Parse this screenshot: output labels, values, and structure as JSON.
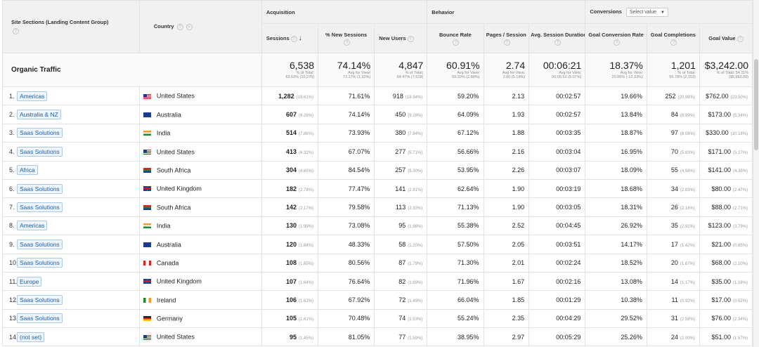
{
  "headers": {
    "dimension1": "Site Sections (Landing Content Group)",
    "dimension2": "Country",
    "groups": {
      "acquisition": "Acquisition",
      "behavior": "Behavior",
      "conversions": "Conversions"
    },
    "conversions_select": "Select value",
    "metrics": [
      "Sessions",
      "% New Sessions",
      "New Users",
      "Bounce Rate",
      "Pages / Session",
      "Avg. Session Duration",
      "Goal Conversion Rate",
      "Goal Completions",
      "Goal Value"
    ]
  },
  "total": {
    "label": "Organic Traffic",
    "cells": [
      {
        "value": "6,538",
        "sub1": "% of Total:",
        "sub2": "63.63% (10,275)"
      },
      {
        "value": "74.14%",
        "sub1": "Avg for View:",
        "sub2": "73.17% (1.32%)"
      },
      {
        "value": "4,847",
        "sub1": "% of Total:",
        "sub2": "64.47% (7,518)"
      },
      {
        "value": "60.91%",
        "sub1": "Avg for View:",
        "sub2": "59.20% (2.88%)"
      },
      {
        "value": "2.74",
        "sub1": "Avg for View:",
        "sub2": "2.60 (5.19%)"
      },
      {
        "value": "00:06:21",
        "sub1": "Avg for View:",
        "sub2": "00:05:52 (8.07%)"
      },
      {
        "value": "18.37%",
        "sub1": "Avg for View:",
        "sub2": "20.95% (-12.33%)"
      },
      {
        "value": "1,201",
        "sub1": "% of Total:",
        "sub2": "55.78% (2,153)"
      },
      {
        "value": "$3,242.00",
        "sub1": "% of Total: 54.11%",
        "sub2": "($5,992.00)"
      }
    ]
  },
  "rows": [
    {
      "idx": "1.",
      "section": "Americas",
      "country": "United States",
      "flag": "us",
      "sessions": "1,282",
      "sessions_pct": "(19.61%)",
      "new_sessions": "71.61%",
      "new_users": "918",
      "new_users_pct": "(18.94%)",
      "bounce": "59.20%",
      "pages": "2.13",
      "duration": "00:02:57",
      "conv_rate": "19.66%",
      "completions": "252",
      "completions_pct": "(20.98%)",
      "value": "$762.00",
      "value_pct": "(23.50%)"
    },
    {
      "idx": "2.",
      "section": "Australia & NZ",
      "country": "Australia",
      "flag": "au",
      "sessions": "607",
      "sessions_pct": "(9.28%)",
      "new_sessions": "74.14%",
      "new_users": "450",
      "new_users_pct": "(9.28%)",
      "bounce": "64.09%",
      "pages": "1.93",
      "duration": "00:02:57",
      "conv_rate": "13.84%",
      "completions": "84",
      "completions_pct": "(6.99%)",
      "value": "$173.00",
      "value_pct": "(5.34%)"
    },
    {
      "idx": "3.",
      "section": "Saas Solutions",
      "country": "India",
      "flag": "in",
      "sessions": "514",
      "sessions_pct": "(7.86%)",
      "new_sessions": "73.93%",
      "new_users": "380",
      "new_users_pct": "(7.84%)",
      "bounce": "67.12%",
      "pages": "1.88",
      "duration": "00:03:35",
      "conv_rate": "18.87%",
      "completions": "97",
      "completions_pct": "(8.08%)",
      "value": "$330.00",
      "value_pct": "(10.18%)"
    },
    {
      "idx": "4.",
      "section": "Saas Solutions",
      "country": "United States",
      "flag": "us",
      "sessions": "413",
      "sessions_pct": "(6.32%)",
      "new_sessions": "67.07%",
      "new_users": "277",
      "new_users_pct": "(5.71%)",
      "bounce": "56.66%",
      "pages": "2.16",
      "duration": "00:03:04",
      "conv_rate": "16.95%",
      "completions": "70",
      "completions_pct": "(5.83%)",
      "value": "$171.00",
      "value_pct": "(5.27%)"
    },
    {
      "idx": "5.",
      "section": "Africa",
      "country": "South Africa",
      "flag": "za",
      "sessions": "304",
      "sessions_pct": "(4.65%)",
      "new_sessions": "84.54%",
      "new_users": "257",
      "new_users_pct": "(5.30%)",
      "bounce": "53.95%",
      "pages": "2.26",
      "duration": "00:03:07",
      "conv_rate": "18.09%",
      "completions": "55",
      "completions_pct": "(4.58%)",
      "value": "$141.00",
      "value_pct": "(4.35%)"
    },
    {
      "idx": "6.",
      "section": "Saas Solutions",
      "country": "United Kingdom",
      "flag": "gb",
      "sessions": "182",
      "sessions_pct": "(2.78%)",
      "new_sessions": "77.47%",
      "new_users": "141",
      "new_users_pct": "(2.91%)",
      "bounce": "62.64%",
      "pages": "1.90",
      "duration": "00:03:19",
      "conv_rate": "18.68%",
      "completions": "34",
      "completions_pct": "(2.83%)",
      "value": "$80.00",
      "value_pct": "(2.47%)"
    },
    {
      "idx": "7.",
      "section": "Saas Solutions",
      "country": "South Africa",
      "flag": "za",
      "sessions": "142",
      "sessions_pct": "(2.17%)",
      "new_sessions": "79.58%",
      "new_users": "113",
      "new_users_pct": "(2.33%)",
      "bounce": "71.13%",
      "pages": "1.90",
      "duration": "00:03:05",
      "conv_rate": "18.31%",
      "completions": "26",
      "completions_pct": "(2.16%)",
      "value": "$88.00",
      "value_pct": "(2.71%)"
    },
    {
      "idx": "8.",
      "section": "Americas",
      "country": "India",
      "flag": "in",
      "sessions": "130",
      "sessions_pct": "(1.99%)",
      "new_sessions": "73.08%",
      "new_users": "95",
      "new_users_pct": "(1.96%)",
      "bounce": "55.38%",
      "pages": "2.52",
      "duration": "00:04:45",
      "conv_rate": "26.92%",
      "completions": "35",
      "completions_pct": "(2.91%)",
      "value": "$123.00",
      "value_pct": "(3.79%)"
    },
    {
      "idx": "9.",
      "section": "Saas Solutions",
      "country": "Australia",
      "flag": "au",
      "sessions": "120",
      "sessions_pct": "(1.84%)",
      "new_sessions": "48.33%",
      "new_users": "58",
      "new_users_pct": "(1.20%)",
      "bounce": "57.50%",
      "pages": "2.05",
      "duration": "00:03:51",
      "conv_rate": "14.17%",
      "completions": "17",
      "completions_pct": "(1.42%)",
      "value": "$21.00",
      "value_pct": "(0.65%)"
    },
    {
      "idx": "10.",
      "section": "Saas Solutions",
      "country": "Canada",
      "flag": "ca",
      "sessions": "108",
      "sessions_pct": "(1.65%)",
      "new_sessions": "80.56%",
      "new_users": "87",
      "new_users_pct": "(1.79%)",
      "bounce": "71.30%",
      "pages": "2.01",
      "duration": "00:02:24",
      "conv_rate": "18.52%",
      "completions": "20",
      "completions_pct": "(1.67%)",
      "value": "$68.00",
      "value_pct": "(2.10%)"
    },
    {
      "idx": "11.",
      "section": "Europe",
      "country": "United Kingdom",
      "flag": "gb",
      "sessions": "107",
      "sessions_pct": "(1.64%)",
      "new_sessions": "76.64%",
      "new_users": "82",
      "new_users_pct": "(1.69%)",
      "bounce": "71.96%",
      "pages": "1.67",
      "duration": "00:02:16",
      "conv_rate": "13.08%",
      "completions": "14",
      "completions_pct": "(1.17%)",
      "value": "$35.00",
      "value_pct": "(1.08%)"
    },
    {
      "idx": "12.",
      "section": "Saas Solutions",
      "country": "Ireland",
      "flag": "ie",
      "sessions": "106",
      "sessions_pct": "(1.62%)",
      "new_sessions": "67.92%",
      "new_users": "72",
      "new_users_pct": "(1.49%)",
      "bounce": "66.04%",
      "pages": "1.85",
      "duration": "00:01:29",
      "conv_rate": "10.38%",
      "completions": "11",
      "completions_pct": "(0.92%)",
      "value": "$17.00",
      "value_pct": "(0.52%)"
    },
    {
      "idx": "13.",
      "section": "Saas Solutions",
      "country": "Germany",
      "flag": "de",
      "sessions": "105",
      "sessions_pct": "(1.61%)",
      "new_sessions": "70.48%",
      "new_users": "74",
      "new_users_pct": "(1.53%)",
      "bounce": "55.24%",
      "pages": "2.35",
      "duration": "00:04:29",
      "conv_rate": "29.52%",
      "completions": "31",
      "completions_pct": "(2.58%)",
      "value": "$76.00",
      "value_pct": "(2.34%)"
    },
    {
      "idx": "14.",
      "section": "(not set)",
      "country": "United States",
      "flag": "us",
      "sessions": "95",
      "sessions_pct": "(1.45%)",
      "new_sessions": "81.05%",
      "new_users": "77",
      "new_users_pct": "(1.59%)",
      "bounce": "38.95%",
      "pages": "2.97",
      "duration": "00:05:29",
      "conv_rate": "25.26%",
      "completions": "24",
      "completions_pct": "(2.00%)",
      "value": "$51.00",
      "value_pct": "(1.57%)"
    }
  ]
}
